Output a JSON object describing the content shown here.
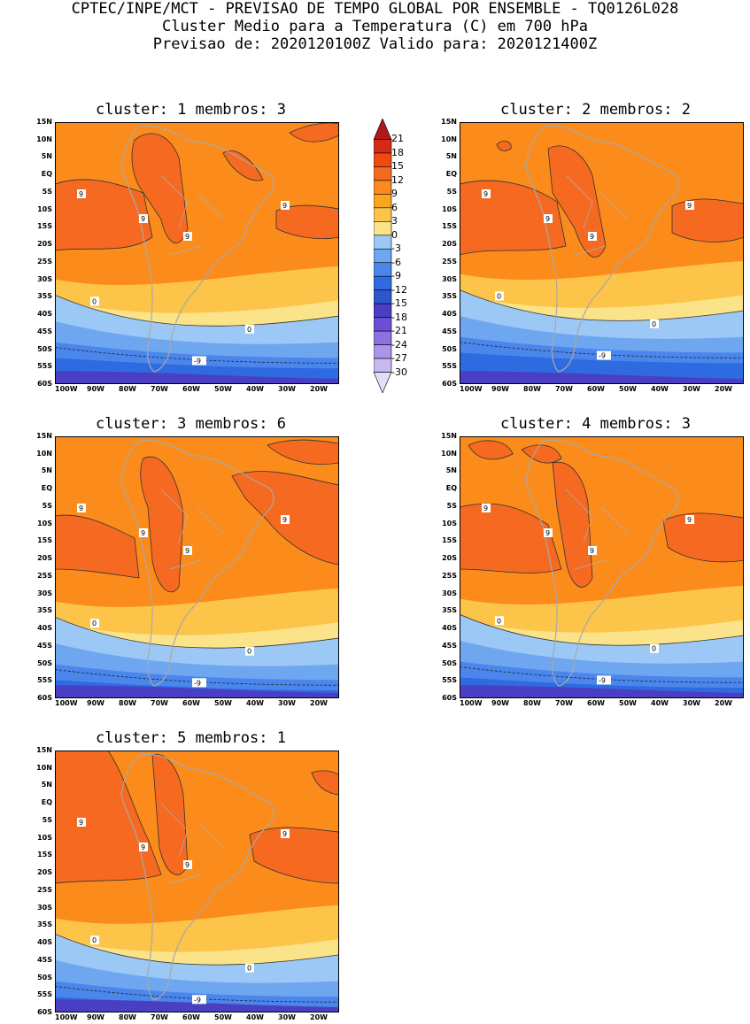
{
  "header": {
    "line1": "CPTEC/INPE/MCT - PREVISAO DE TEMPO GLOBAL POR ENSEMBLE - TQ0126L028",
    "line2": "Cluster Medio para a Temperatura (C) em 700 hPa",
    "line3": "Previsao de: 2020120100Z   Valido para: 2020121400Z"
  },
  "axes": {
    "lat_labels": [
      "15N",
      "10N",
      "5N",
      "EQ",
      "5S",
      "10S",
      "15S",
      "20S",
      "25S",
      "30S",
      "35S",
      "40S",
      "45S",
      "50S",
      "55S",
      "60S"
    ],
    "lon_labels": [
      "100W",
      "90W",
      "80W",
      "70W",
      "60W",
      "50W",
      "40W",
      "30W",
      "20W"
    ]
  },
  "colorbar": {
    "labels": [
      "21",
      "18",
      "15",
      "12",
      "9",
      "6",
      "3",
      "0",
      "-3",
      "-6",
      "-9",
      "-12",
      "-15",
      "-18",
      "-21",
      "-24",
      "-27",
      "-30"
    ],
    "colors": [
      "#b0181a",
      "#d62a16",
      "#ee4a10",
      "#f56a20",
      "#fb8c1c",
      "#faa520",
      "#fcc54a",
      "#fbe389",
      "#9cc8f5",
      "#6ea6f0",
      "#4a86ec",
      "#2f6be0",
      "#2f55cc",
      "#4a3fc2",
      "#6a4fd6",
      "#8c71e0",
      "#a995ea",
      "#c6b9f0",
      "#e4dcf8"
    ]
  },
  "panels": [
    {
      "title": "cluster: 1   membros: 3"
    },
    {
      "title": "cluster: 2   membros: 2"
    },
    {
      "title": "cluster: 3   membros: 6"
    },
    {
      "title": "cluster: 4   membros: 3"
    },
    {
      "title": "cluster: 5   membros: 1"
    }
  ],
  "contour_labels": {
    "nine": "9",
    "zero": "0",
    "minus_nine": "-9"
  }
}
